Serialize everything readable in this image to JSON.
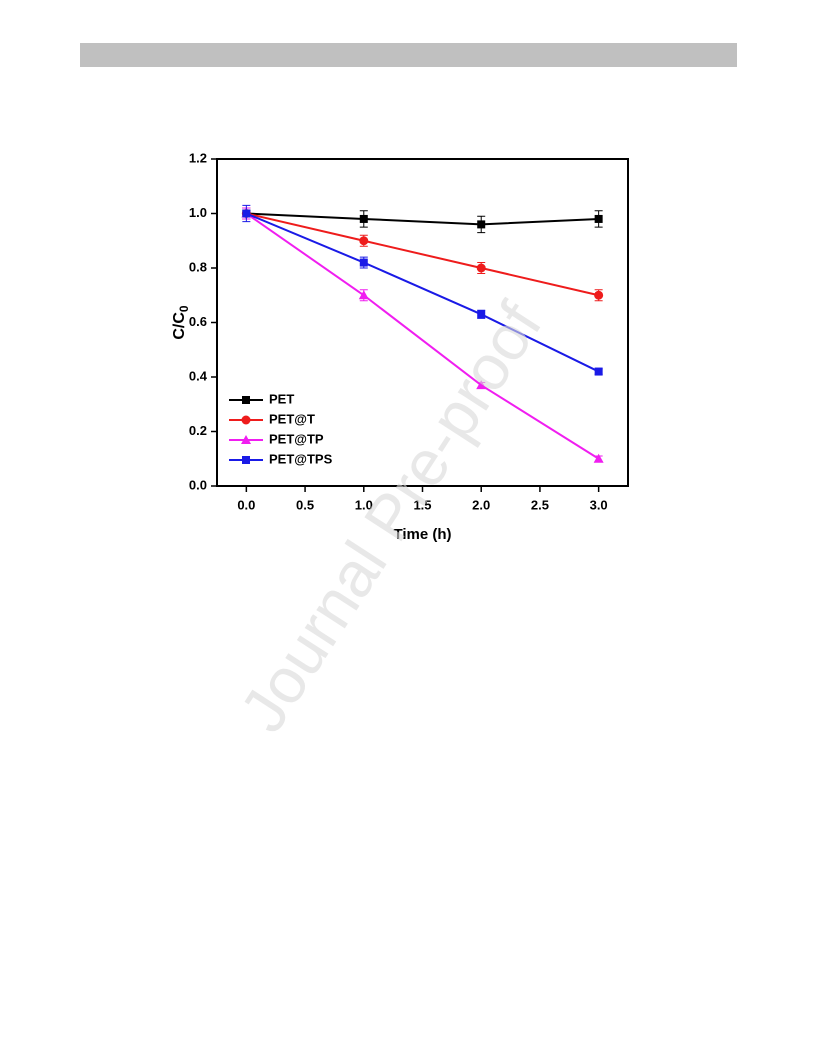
{
  "chart_data": {
    "type": "line",
    "xlabel": "Time (h)",
    "ylabel": {
      "text": "C/C",
      "subscript": "0"
    },
    "watermark": "Journal Pre-proof",
    "x": [
      0,
      1,
      2,
      3
    ],
    "xlim": [
      -0.25,
      3.25
    ],
    "ylim": [
      0,
      1.2
    ],
    "xticks": [
      {
        "value": 0,
        "label": "0.0"
      },
      0.5,
      {
        "value": 1,
        "label": "1.0"
      },
      1.5,
      {
        "value": 2,
        "label": "2.0"
      },
      2.5,
      {
        "value": 3,
        "label": "3.0"
      }
    ],
    "yticks": [
      {
        "value": 0,
        "label": "0.0"
      },
      0.2,
      0.4,
      0.6,
      0.8,
      {
        "value": 1,
        "label": "1.0"
      },
      1.2
    ],
    "legend": "lower left",
    "series": [
      {
        "name": "PET",
        "color": "#000000",
        "marker": "square",
        "values": [
          1.0,
          0.98,
          0.96,
          0.98
        ],
        "errors": [
          0.02,
          0.03,
          0.03,
          0.03
        ]
      },
      {
        "name": "PET@T",
        "color": "#ee1c1c",
        "marker": "circle",
        "values": [
          1.0,
          0.9,
          0.8,
          0.7
        ],
        "errors": [
          0.02,
          0.02,
          0.02,
          0.02
        ]
      },
      {
        "name": "PET@TP",
        "color": "#f01ef0",
        "marker": "triangle",
        "values": [
          1.0,
          0.7,
          0.37,
          0.1
        ],
        "errors": [
          0.02,
          0.02,
          0.01,
          0.01
        ]
      },
      {
        "name": "PET@TPS",
        "color": "#1a1ae6",
        "marker": "square",
        "values": [
          1.0,
          0.82,
          0.63,
          0.42
        ],
        "errors": [
          0.03,
          0.02,
          0.015,
          0.01
        ]
      }
    ]
  }
}
